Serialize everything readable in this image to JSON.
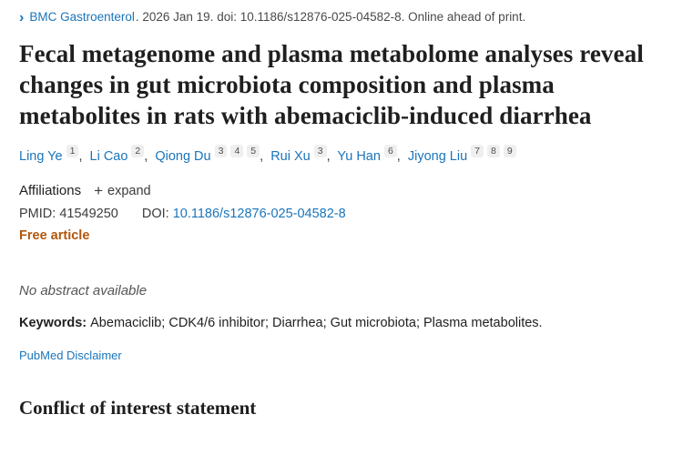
{
  "citation": {
    "chevron": "›",
    "journal": "BMC Gastroenterol",
    "rest": ". 2026 Jan 19. doi: 10.1186/s12876-025-04582-8. Online ahead of print."
  },
  "title": "Fecal metagenome and plasma metabolome analyses reveal changes in gut microbiota composition and plasma metabolites in rats with abemaciclib-induced diarrhea",
  "author_separator": ",",
  "authors": [
    {
      "name": "Ling Ye",
      "sups": [
        "1"
      ]
    },
    {
      "name": "Li Cao",
      "sups": [
        "2"
      ]
    },
    {
      "name": "Qiong Du",
      "sups": [
        "3",
        "4",
        "5"
      ]
    },
    {
      "name": "Rui Xu",
      "sups": [
        "3"
      ]
    },
    {
      "name": "Yu Han",
      "sups": [
        "6"
      ]
    },
    {
      "name": "Jiyong Liu",
      "sups": [
        "7",
        "8",
        "9"
      ]
    }
  ],
  "affiliations": {
    "label": "Affiliations",
    "expand_icon": "+",
    "expand_label": "expand"
  },
  "identifiers": {
    "pmid_label": "PMID:",
    "pmid": "41549250",
    "doi_label": "DOI:",
    "doi": "10.1186/s12876-025-04582-8"
  },
  "free_article_label": "Free article",
  "abstract_note": "No abstract available",
  "keywords": {
    "label": "Keywords:",
    "text": "Abemaciclib; CDK4/6 inhibitor; Diarrhea; Gut microbiota; Plasma metabolites."
  },
  "disclaimer_link": "PubMed Disclaimer",
  "conflict_heading": "Conflict of interest statement",
  "colors": {
    "link_blue": "#1a75bb",
    "free_article_orange": "#b3560d",
    "text_dark": "#212121",
    "text_gray": "#4a4a4a"
  }
}
